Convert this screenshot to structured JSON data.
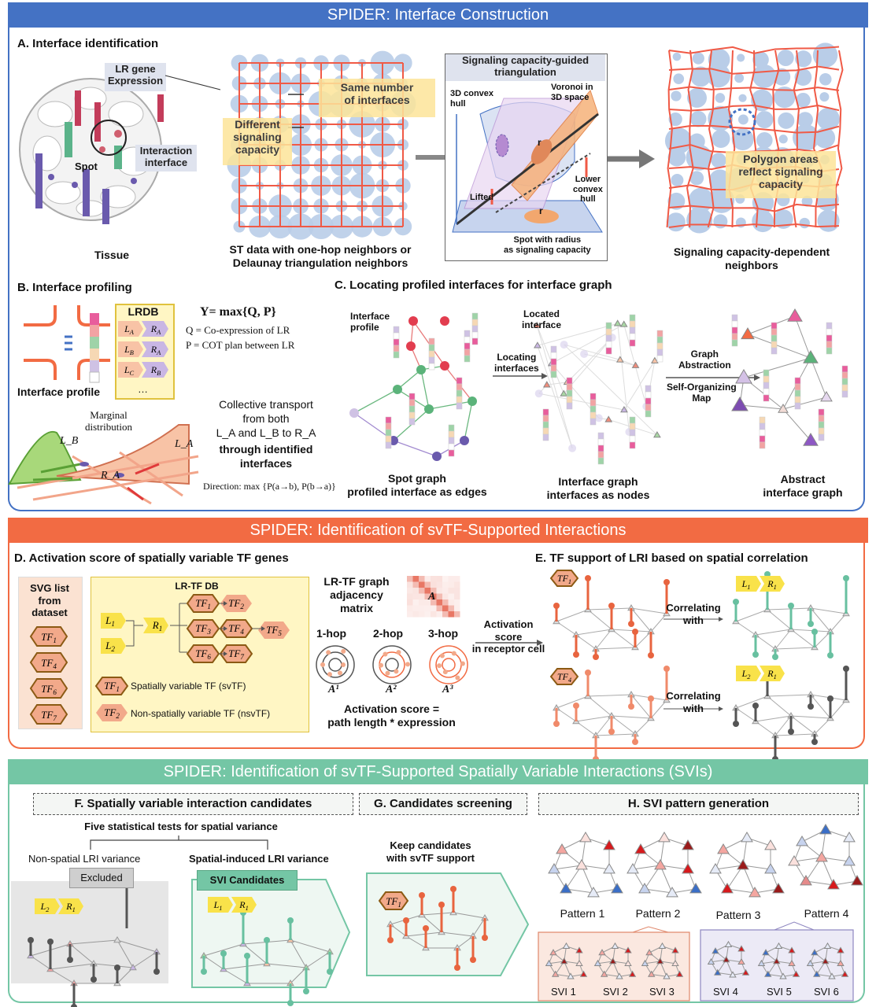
{
  "bands": {
    "b1": "SPIDER: Interface Construction",
    "b2": "SPIDER: Identification of svTF-Supported Interactions",
    "b3": "SPIDER: Identification of svTF-Supported Spatially Variable Interactions (SVIs)"
  },
  "colors": {
    "blue": "#4472c4",
    "orange": "#f26b43",
    "teal": "#74c6a5",
    "red_line": "#f05a46"
  },
  "A": {
    "title": "A. Interface identification",
    "lr_gene": "LR gene\nExpression",
    "spot": "Spot",
    "interaction_interface": "Interaction\ninterface",
    "tissue": "Tissue",
    "same_number": "Same number\nof interfaces",
    "diff_cap": "Different\nsignaling\ncapacity",
    "st_caption": "ST data with one-hop neighbors or\nDelaunay triangulation neighbors",
    "box_title": "Signaling capacity-guided\ntriangulation",
    "hull3d": "3D convex\nhull",
    "voronoi": "Voronoi in\n3D space",
    "r1": "r",
    "r2": "r",
    "lifted": "Lifted",
    "lower_hull": "Lower\nconvex\nhull",
    "spot_radius": "Spot with radius\nas signaling capacity",
    "polygon": "Polygon areas\nreflect signaling\ncapacity",
    "dep_caption": "Signaling capacity-dependent\nneighbors"
  },
  "B": {
    "title": "B. Interface profiling",
    "lrdb": "LRDB",
    "lrdb_rows": [
      [
        "L_A",
        "R_A"
      ],
      [
        "L_B",
        "R_A"
      ],
      [
        "L_C",
        "R_B"
      ]
    ],
    "ellipsis": "…",
    "interface_profile": "Interface profile",
    "eq_y": "Y= max{Q, P}",
    "eq_q": "Q = Co-expression of LR",
    "eq_p": "P = COT plan between LR",
    "marginal": "Marginal\ndistribution",
    "lb": "L_B",
    "la": "L_A",
    "ra": "R_A",
    "collective": "Collective transport\nfrom both\nL_A and L_B to R_A",
    "through": "through identified\ninterfaces",
    "direction": "Direction: max {P(a→b), P(b→a)}"
  },
  "C": {
    "title": "C. Locating profiled interfaces for interface graph",
    "iface_profile": "Interface\nprofile",
    "locating": "Locating\ninterfaces",
    "located": "Located\ninterface",
    "graph_abs": "Graph\nAbstraction",
    "som": "Self-Organizing\nMap",
    "cap1": "Spot graph\nprofiled interface as edges",
    "cap2": "Interface graph\ninterfaces as nodes",
    "cap3": "Abstract\ninterface graph"
  },
  "D": {
    "title": "D. Activation score of spatially variable TF genes",
    "svg_list": "SVG list\nfrom\ndataset",
    "svg_tfs": [
      "TF1",
      "TF4",
      "TF6",
      "TF7"
    ],
    "lrtf_db": "LR-TF DB",
    "l1": "L1",
    "l2": "L2",
    "r1": "R1",
    "tfs": [
      "TF1",
      "TF2",
      "TF3",
      "TF4",
      "TF5",
      "TF6",
      "TF7"
    ],
    "legend_sv": "Spatially variable TF (svTF)",
    "legend_nsv": "Non-spatially variable TF (nsvTF)",
    "leg_tf1": "TF1",
    "leg_tf2": "TF2",
    "adj": "LR-TF graph\nadjacency\nmatrix",
    "adj_a": "A",
    "hops": [
      "1-hop",
      "2-hop",
      "3-hop"
    ],
    "powers": [
      "A¹",
      "A²",
      "A³"
    ],
    "act_score": "Activation score =\npath length * expression",
    "act_receptor": "Activation\nscore\nin receptor cell"
  },
  "E": {
    "title": "E. TF support of LRI based on spatial correlation",
    "tf1": "TF1",
    "tf4": "TF4",
    "corr1": "Correlating\nwith",
    "corr2": "Correlating\nwith",
    "pair1": [
      "L1",
      "R1"
    ],
    "pair2": [
      "L2",
      "R1"
    ]
  },
  "F": {
    "title": "F. Spatially variable interaction candidates",
    "five": "Five statistical tests for spatial variance",
    "nonspatial": "Non-spatial LRI variance",
    "spatial": "Spatial-induced LRI variance",
    "excluded": "Excluded",
    "svi_cand": "SVI Candidates",
    "pair_a": [
      "L2",
      "R1"
    ],
    "pair_b": [
      "L1",
      "R1"
    ]
  },
  "G": {
    "title": "G. Candidates screening",
    "keep": "Keep candidates\nwith svTF support",
    "tf1": "TF1"
  },
  "H": {
    "title": "H. SVI pattern generation",
    "patterns": [
      "Pattern 1",
      "Pattern 2",
      "Pattern 3",
      "Pattern 4"
    ],
    "svis": [
      "SVI 1",
      "SVI 2",
      "SVI 3",
      "SVI 4",
      "SVI 5",
      "SVI 6"
    ]
  }
}
